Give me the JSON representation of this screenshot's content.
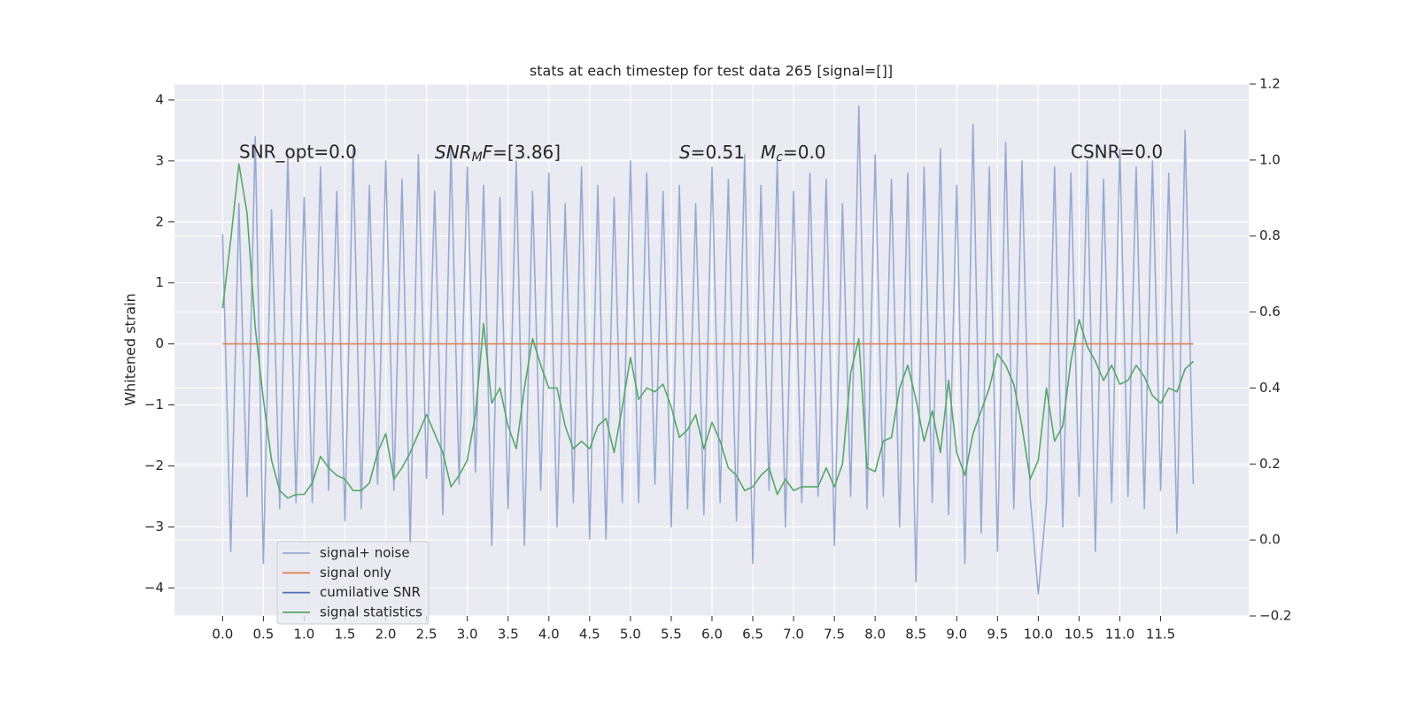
{
  "chart_data": {
    "type": "line",
    "title": "stats at each timestep for test data 265 [signal=[]]",
    "ylabel": "Whitened strain",
    "annotations": [
      "SNR_opt=0.0",
      [
        "SNR",
        "M",
        "F",
        "=[3.86]"
      ],
      [
        "S",
        "=0.51"
      ],
      [
        "M",
        "c",
        "=0.0"
      ],
      "CSNR=0.0"
    ],
    "xlim": [
      -0.59,
      12.58
    ],
    "ylim": [
      -4.46,
      4.26
    ],
    "y2lim": [
      -0.2,
      1.2
    ],
    "xticks": [
      {
        "value": 0,
        "label": "0.0"
      },
      0.5,
      {
        "value": 1,
        "label": "1.0"
      },
      1.5,
      {
        "value": 2,
        "label": "2.0"
      },
      2.5,
      {
        "value": 3,
        "label": "3.0"
      },
      3.5,
      {
        "value": 4,
        "label": "4.0"
      },
      4.5,
      {
        "value": 5,
        "label": "5.0"
      },
      5.5,
      {
        "value": 6,
        "label": "6.0"
      },
      6.5,
      {
        "value": 7,
        "label": "7.0"
      },
      7.5,
      {
        "value": 8,
        "label": "8.0"
      },
      8.5,
      {
        "value": 9,
        "label": "9.0"
      },
      9.5,
      {
        "value": 10,
        "label": "10.0"
      },
      10.5,
      {
        "value": 11,
        "label": "11.0"
      },
      11.5
    ],
    "yticks": [
      {
        "value": -4,
        "label": "−4"
      },
      {
        "value": -3,
        "label": "−3"
      },
      {
        "value": -2,
        "label": "−2"
      },
      {
        "value": -1,
        "label": "−1"
      },
      0,
      1,
      2,
      3,
      4
    ],
    "y2ticks": [
      {
        "value": -0.2,
        "label": "−0.2"
      },
      {
        "value": 0,
        "label": "0.0"
      },
      0.2,
      0.4,
      0.6,
      0.8,
      {
        "value": 1,
        "label": "1.0"
      },
      1.2
    ],
    "grid": true,
    "legend": "lower left",
    "x": [
      0,
      0.1,
      0.2,
      0.3,
      0.4,
      0.5,
      0.6,
      0.7,
      0.8,
      0.9,
      1,
      1.1,
      1.2,
      1.3,
      1.4,
      1.5,
      1.6,
      1.7,
      1.8,
      1.9,
      2,
      2.1,
      2.2,
      2.3,
      2.4,
      2.5,
      2.6,
      2.7,
      2.8,
      2.9,
      3,
      3.1,
      3.2,
      3.3,
      3.4,
      3.5,
      3.6,
      3.7,
      3.8,
      3.9,
      4,
      4.1,
      4.2,
      4.3,
      4.4,
      4.5,
      4.6,
      4.7,
      4.8,
      4.9,
      5,
      5.1,
      5.2,
      5.3,
      5.4,
      5.5,
      5.6,
      5.7,
      5.8,
      5.9,
      6,
      6.1,
      6.2,
      6.3,
      6.4,
      6.5,
      6.6,
      6.7,
      6.8,
      6.9,
      7,
      7.1,
      7.2,
      7.3,
      7.4,
      7.5,
      7.6,
      7.7,
      7.8,
      7.9,
      8,
      8.1,
      8.2,
      8.3,
      8.4,
      8.5,
      8.6,
      8.7,
      8.8,
      8.9,
      9,
      9.1,
      9.2,
      9.3,
      9.4,
      9.5,
      9.6,
      9.7,
      9.8,
      9.9,
      10,
      10.1,
      10.2,
      10.3,
      10.4,
      10.5,
      10.6,
      10.7,
      10.8,
      10.9,
      11,
      11.1,
      11.2,
      11.3,
      11.4,
      11.5,
      11.6,
      11.7,
      11.8,
      11.9
    ],
    "series": [
      {
        "name": "signal+ noise",
        "color": "#97aad2",
        "values": [
          1.8,
          -3.4,
          2.3,
          -2.5,
          3.4,
          -3.6,
          2.2,
          -2.7,
          3.1,
          -2.6,
          2.4,
          -2.6,
          2.9,
          -2.4,
          2.5,
          -2.9,
          3.2,
          -2.7,
          2.6,
          -2.3,
          3.0,
          -2.4,
          2.7,
          -3.3,
          3.1,
          -2.2,
          2.5,
          -2.8,
          3.2,
          -2.3,
          2.9,
          -2.1,
          2.6,
          -3.3,
          2.4,
          -2.7,
          3.0,
          -3.3,
          2.5,
          -2.4,
          2.8,
          -3.0,
          2.3,
          -2.6,
          2.9,
          -3.2,
          2.6,
          -3.2,
          2.4,
          -2.6,
          3.0,
          -2.6,
          2.8,
          -2.3,
          2.5,
          -3.0,
          2.6,
          -2.7,
          2.3,
          -2.8,
          2.9,
          -2.6,
          2.7,
          -2.9,
          3.1,
          -3.6,
          2.6,
          -2.4,
          3.0,
          -3.0,
          2.5,
          -2.6,
          2.8,
          -2.5,
          2.7,
          -3.3,
          2.3,
          -2.5,
          3.9,
          -2.7,
          3.1,
          -2.5,
          2.7,
          -3.0,
          2.8,
          -3.9,
          2.9,
          -2.6,
          3.2,
          -2.8,
          2.6,
          -3.6,
          3.6,
          -3.1,
          2.9,
          -3.4,
          3.3,
          -2.7,
          3.0,
          -2.5,
          -4.1,
          -2.6,
          2.9,
          -3.0,
          2.8,
          -2.5,
          3.0,
          -3.4,
          2.7,
          -2.6,
          3.2,
          -2.5,
          2.9,
          -2.7,
          3.0,
          -2.4,
          2.8,
          -3.1,
          3.5,
          -2.3
        ]
      },
      {
        "name": "signal only",
        "color": "#dd8452",
        "values": [
          0,
          0,
          0,
          0,
          0,
          0,
          0,
          0,
          0,
          0,
          0,
          0,
          0,
          0,
          0,
          0,
          0,
          0,
          0,
          0,
          0,
          0,
          0,
          0,
          0,
          0,
          0,
          0,
          0,
          0,
          0,
          0,
          0,
          0,
          0,
          0,
          0,
          0,
          0,
          0,
          0,
          0,
          0,
          0,
          0,
          0,
          0,
          0,
          0,
          0,
          0,
          0,
          0,
          0,
          0,
          0,
          0,
          0,
          0,
          0,
          0,
          0,
          0,
          0,
          0,
          0,
          0,
          0,
          0,
          0,
          0,
          0,
          0,
          0,
          0,
          0,
          0,
          0,
          0,
          0,
          0,
          0,
          0,
          0,
          0,
          0,
          0,
          0,
          0,
          0,
          0,
          0,
          0,
          0,
          0,
          0,
          0,
          0,
          0,
          0,
          0,
          0,
          0,
          0,
          0,
          0,
          0,
          0,
          0,
          0,
          0,
          0,
          0,
          0,
          0,
          0,
          0,
          0,
          0,
          0
        ]
      },
      {
        "name": "cumilative SNR",
        "color": "#4c72b0"
      },
      {
        "name": "signal statistics",
        "color": "#55a868",
        "axis": "y2",
        "values": [
          0.61,
          0.79,
          0.99,
          0.86,
          0.56,
          0.37,
          0.21,
          0.13,
          0.11,
          0.12,
          0.12,
          0.15,
          0.22,
          0.19,
          0.17,
          0.16,
          0.13,
          0.13,
          0.15,
          0.23,
          0.28,
          0.16,
          0.19,
          0.23,
          0.28,
          0.33,
          0.28,
          0.23,
          0.14,
          0.17,
          0.21,
          0.33,
          0.57,
          0.36,
          0.4,
          0.3,
          0.24,
          0.4,
          0.53,
          0.46,
          0.4,
          0.4,
          0.3,
          0.24,
          0.26,
          0.24,
          0.3,
          0.32,
          0.23,
          0.35,
          0.48,
          0.37,
          0.4,
          0.39,
          0.41,
          0.35,
          0.27,
          0.29,
          0.33,
          0.24,
          0.31,
          0.26,
          0.19,
          0.17,
          0.13,
          0.14,
          0.17,
          0.19,
          0.12,
          0.16,
          0.13,
          0.14,
          0.14,
          0.14,
          0.19,
          0.14,
          0.2,
          0.44,
          0.53,
          0.19,
          0.18,
          0.26,
          0.27,
          0.4,
          0.46,
          0.37,
          0.26,
          0.34,
          0.23,
          0.42,
          0.23,
          0.17,
          0.28,
          0.34,
          0.4,
          0.49,
          0.46,
          0.41,
          0.3,
          0.16,
          0.21,
          0.4,
          0.26,
          0.3,
          0.47,
          0.58,
          0.51,
          0.47,
          0.42,
          0.46,
          0.41,
          0.42,
          0.46,
          0.43,
          0.38,
          0.36,
          0.4,
          0.39,
          0.45,
          0.47
        ]
      }
    ]
  }
}
